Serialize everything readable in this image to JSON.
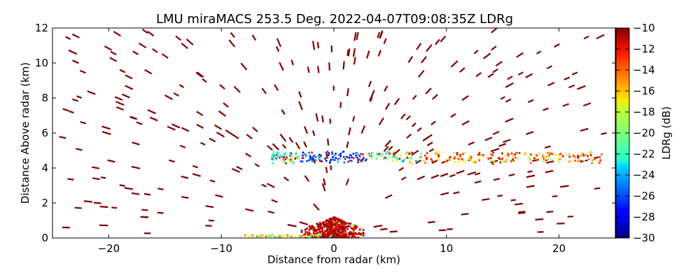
{
  "chart_data": {
    "type": "scatter",
    "subtype": "rhi-radar-scan",
    "title": "LMU miraMACS 253.5 Deg. 2022-04-07T09:08:35Z  LDRg",
    "xlabel": "Distance from radar (km)",
    "ylabel": "Distance Above radar  (km)",
    "xlim": [
      -25,
      25
    ],
    "ylim": [
      0,
      12
    ],
    "xticks": [
      -20,
      -10,
      0,
      10,
      20
    ],
    "xtick_labels": [
      "−20",
      "−10",
      "0",
      "10",
      "20"
    ],
    "yticks": [
      0,
      2,
      4,
      6,
      8,
      10,
      12
    ],
    "ytick_labels": [
      "0",
      "2",
      "4",
      "6",
      "8",
      "10",
      "12"
    ],
    "colorbar": {
      "label": "LDRg (dB)",
      "min": -30,
      "max": -10,
      "ticks": [
        -30,
        -28,
        -26,
        -24,
        -22,
        -20,
        -18,
        -16,
        -14,
        -12,
        -10
      ],
      "tick_labels": [
        "−30",
        "−28",
        "−26",
        "−24",
        "−22",
        "−20",
        "−18",
        "−16",
        "−14",
        "−12",
        "−10"
      ],
      "colormap": "jet"
    },
    "features": [
      {
        "name": "melting layer band",
        "x_range": [
          -5.5,
          24
        ],
        "y_center": 4.6,
        "ldr_range": [
          -29,
          -14
        ]
      },
      {
        "name": "low-level clutter near radar",
        "x_range": [
          -3,
          3
        ],
        "y_range": [
          0,
          1.2
        ],
        "ldr_typical": -10
      }
    ],
    "points": [
      [
        -23.8,
        0.6,
        -10
      ],
      [
        -22.3,
        9.5,
        -10
      ],
      [
        -21.0,
        2.0,
        -10
      ],
      [
        -20.2,
        6.0,
        -10
      ],
      [
        -19.6,
        10.2,
        -10
      ],
      [
        -19.0,
        7.4,
        -10
      ],
      [
        -18.8,
        3.0,
        -10
      ],
      [
        -18.2,
        8.6,
        -10
      ],
      [
        -17.6,
        5.4,
        -10
      ],
      [
        -17.0,
        11.0,
        -10
      ],
      [
        -16.5,
        9.5,
        -10
      ],
      [
        -16.8,
        1.6,
        -10
      ],
      [
        -16.0,
        6.8,
        -10
      ],
      [
        -15.4,
        2.8,
        -10
      ],
      [
        -15.0,
        10.4,
        -10
      ],
      [
        -14.4,
        4.4,
        -10
      ],
      [
        -14.0,
        8.2,
        -10
      ],
      [
        -13.2,
        6.2,
        -10
      ],
      [
        -12.8,
        11.2,
        -10
      ],
      [
        -12.2,
        3.6,
        -10
      ],
      [
        -11.5,
        9.0,
        -10
      ],
      [
        -10.8,
        5.6,
        -10
      ],
      [
        -10.2,
        2.4,
        -10
      ],
      [
        -9.6,
        7.6,
        -10
      ],
      [
        -9.0,
        11.6,
        -10
      ],
      [
        -8.4,
        4.0,
        -10
      ],
      [
        -8.0,
        9.8,
        -10
      ],
      [
        -7.5,
        1.6,
        -10
      ],
      [
        -7.0,
        6.2,
        -10
      ],
      [
        -6.2,
        8.4,
        -10
      ],
      [
        -5.6,
        3.0,
        -10
      ],
      [
        -5.0,
        10.8,
        -10
      ],
      [
        -4.5,
        7.2,
        -10
      ],
      [
        -3.8,
        5.6,
        -10
      ],
      [
        -3.0,
        8.2,
        -10
      ],
      [
        -2.4,
        3.4,
        -10
      ],
      [
        -1.8,
        11.0,
        -10
      ],
      [
        -1.0,
        6.8,
        -10
      ],
      [
        -0.4,
        9.8,
        -10
      ],
      [
        0.6,
        7.6,
        -10
      ],
      [
        1.2,
        3.2,
        -10
      ],
      [
        1.8,
        10.6,
        -10
      ],
      [
        2.6,
        6.2,
        -10
      ],
      [
        3.2,
        8.8,
        -10
      ],
      [
        4.2,
        11.6,
        -10
      ],
      [
        4.8,
        5.4,
        -10
      ],
      [
        5.6,
        7.8,
        -10
      ],
      [
        6.2,
        3.4,
        -10
      ],
      [
        6.8,
        10.2,
        -10
      ],
      [
        7.6,
        6.2,
        -10
      ],
      [
        8.4,
        8.4,
        -10
      ],
      [
        9.2,
        11.2,
        -10
      ],
      [
        9.8,
        3.6,
        -10
      ],
      [
        10.6,
        7.0,
        -10
      ],
      [
        11.4,
        9.6,
        -10
      ],
      [
        12.2,
        5.4,
        -10
      ],
      [
        12.8,
        3.2,
        -10
      ],
      [
        13.6,
        10.4,
        -10
      ],
      [
        14.4,
        6.0,
        -10
      ],
      [
        15.0,
        8.0,
        -10
      ],
      [
        15.8,
        3.6,
        -10
      ],
      [
        16.6,
        9.4,
        -10
      ],
      [
        17.4,
        6.0,
        -10
      ],
      [
        18.2,
        10.6,
        -10
      ],
      [
        19.0,
        5.2,
        -10
      ],
      [
        19.8,
        11.0,
        -10
      ],
      [
        20.6,
        7.6,
        -10
      ],
      [
        21.4,
        9.4,
        -10
      ],
      [
        22.2,
        4.4,
        -10
      ],
      [
        23.4,
        4.6,
        -10
      ]
    ]
  }
}
